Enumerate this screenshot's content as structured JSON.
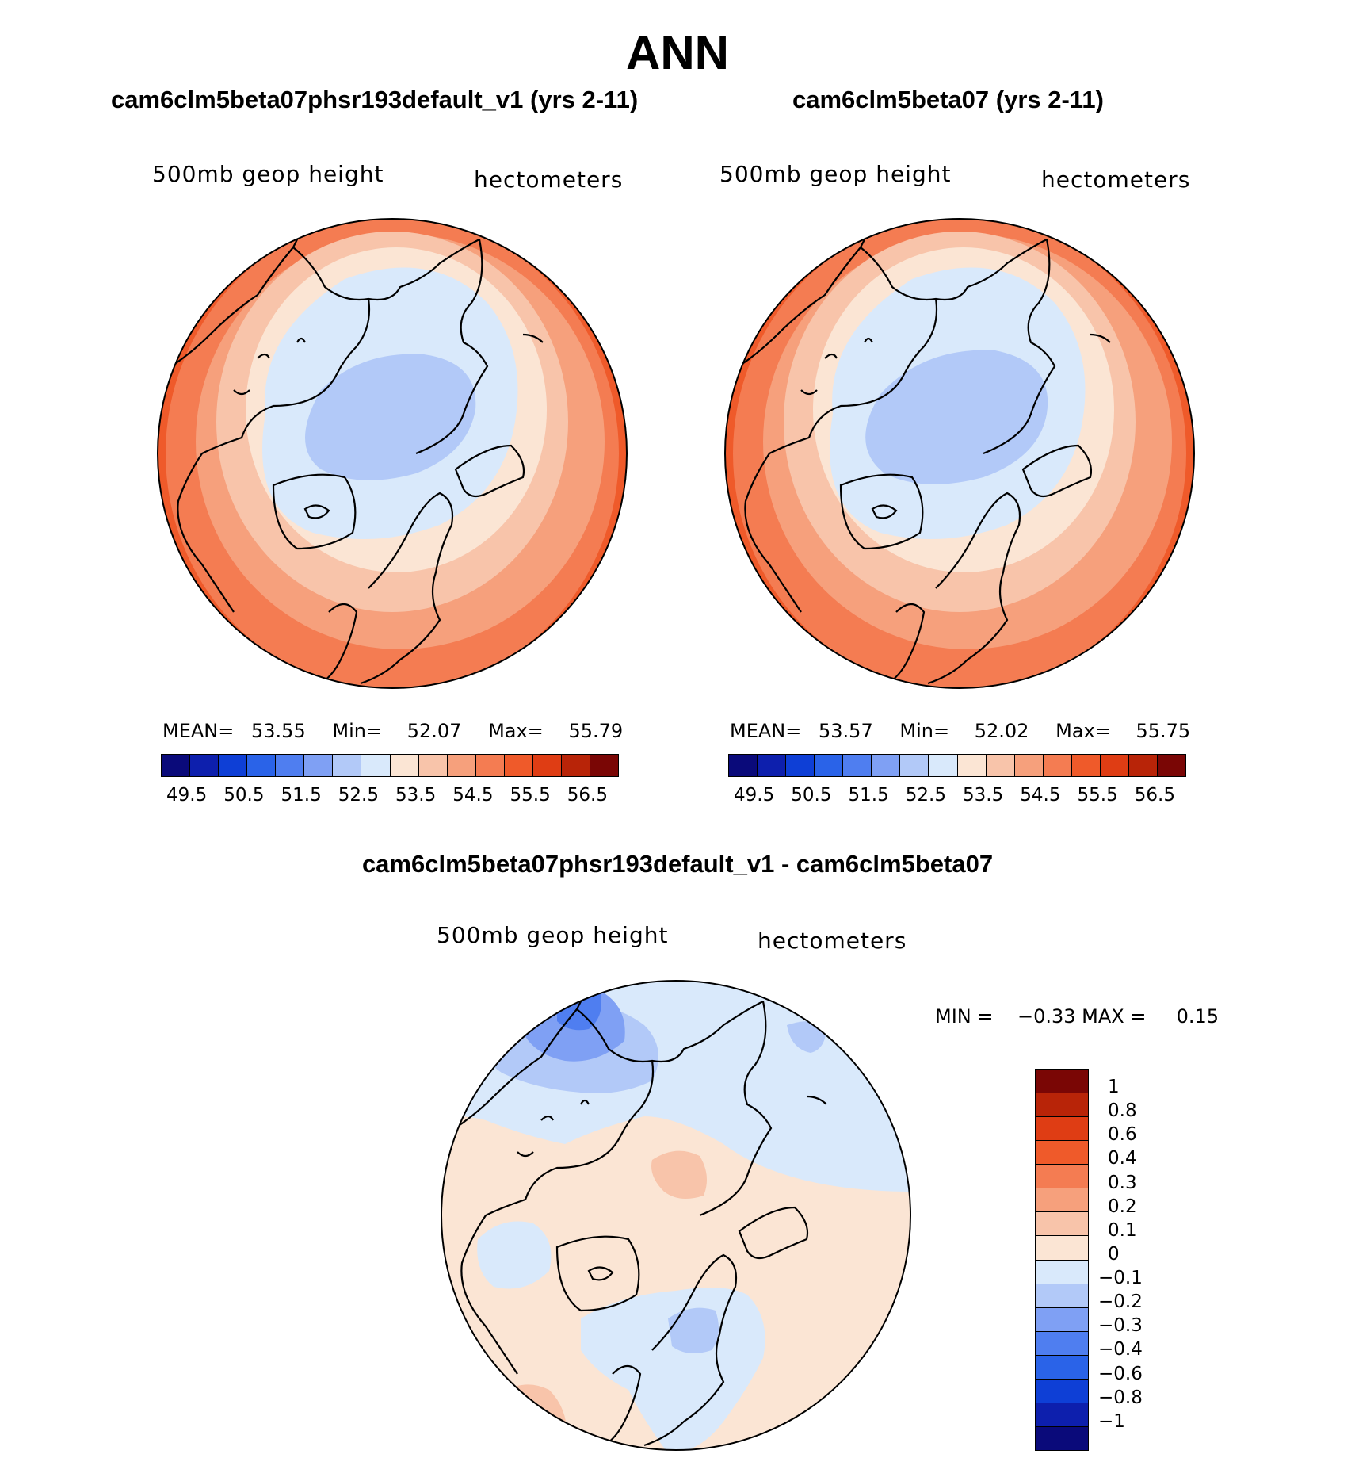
{
  "title": "ANN",
  "panels": [
    {
      "title": "cam6clm5beta07phsr193default_v1 (yrs 2-11)",
      "variable": "500mb geop height",
      "units": "hectometers",
      "stats": {
        "mean_label": "MEAN=",
        "mean": "53.55",
        "min_label": "Min=",
        "min": "52.07",
        "max_label": "Max=",
        "max": "55.79"
      }
    },
    {
      "title": "cam6clm5beta07 (yrs 2-11)",
      "variable": "500mb geop height",
      "units": "hectometers",
      "stats": {
        "mean_label": "MEAN=",
        "mean": "53.57",
        "min_label": "Min=",
        "min": "52.02",
        "max_label": "Max=",
        "max": "55.75"
      }
    }
  ],
  "difference": {
    "title": "cam6clm5beta07phsr193default_v1 - cam6clm5beta07",
    "variable": "500mb geop height",
    "units": "hectometers",
    "minmax": "MIN =    −0.33 MAX =     0.15",
    "colorbar_labels": [
      "1",
      "0.8",
      "0.6",
      "0.4",
      "0.3",
      "0.2",
      "0.1",
      "0",
      "−0.1",
      "−0.2",
      "−0.3",
      "−0.4",
      "−0.6",
      "−0.8",
      "−1"
    ]
  },
  "colorbar_ticks": [
    "49.5",
    "50.5",
    "51.5",
    "52.5",
    "53.5",
    "54.5",
    "55.5",
    "56.5"
  ],
  "colors": {
    "scale": [
      "#0a0a7a",
      "#0d1fad",
      "#0e3fd6",
      "#2a63e8",
      "#4f7ef0",
      "#7fa0f4",
      "#b2c9f8",
      "#d9e9fb",
      "#fbe5d4",
      "#f8c4aa",
      "#f6a07c",
      "#f47c52",
      "#ef5a2a",
      "#df3d14",
      "#b82408",
      "#7a0605"
    ],
    "diff_scale": [
      "#7a0605",
      "#b82408",
      "#df3d14",
      "#ef5a2a",
      "#f47c52",
      "#f6a07c",
      "#f8c4aa",
      "#fbe5d4",
      "#d9e9fb",
      "#b2c9f8",
      "#7fa0f4",
      "#4f7ef0",
      "#2a63e8",
      "#0e3fd6",
      "#0d1fad",
      "#0a0a7a"
    ]
  }
}
